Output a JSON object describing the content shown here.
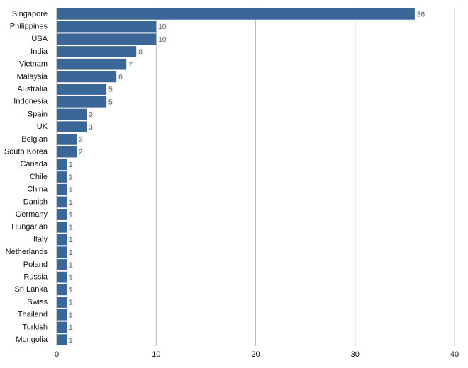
{
  "chart_data": {
    "type": "bar",
    "orientation": "horizontal",
    "categories": [
      "Singapore",
      "Philippines",
      "USA",
      "India",
      "Vietnam",
      "Malaysia",
      "Australia",
      "Indonesia",
      "Spain",
      "UK",
      "Belgian",
      "South Korea",
      "Canada",
      "Chile",
      "China",
      "Danish",
      "Germany",
      "Hungarian",
      "Italy",
      "Netherlands",
      "Poland",
      "Russia",
      "Sri Lanka",
      "Swiss",
      "Thailand",
      "Turkish",
      "Mongolia"
    ],
    "values": [
      36,
      10,
      10,
      8,
      7,
      6,
      5,
      5,
      3,
      3,
      2,
      2,
      1,
      1,
      1,
      1,
      1,
      1,
      1,
      1,
      1,
      1,
      1,
      1,
      1,
      1,
      1
    ],
    "color": "#3b6698",
    "xlim": [
      0,
      40
    ],
    "xticks": [
      0,
      10,
      20,
      30,
      40
    ],
    "grid": true
  }
}
